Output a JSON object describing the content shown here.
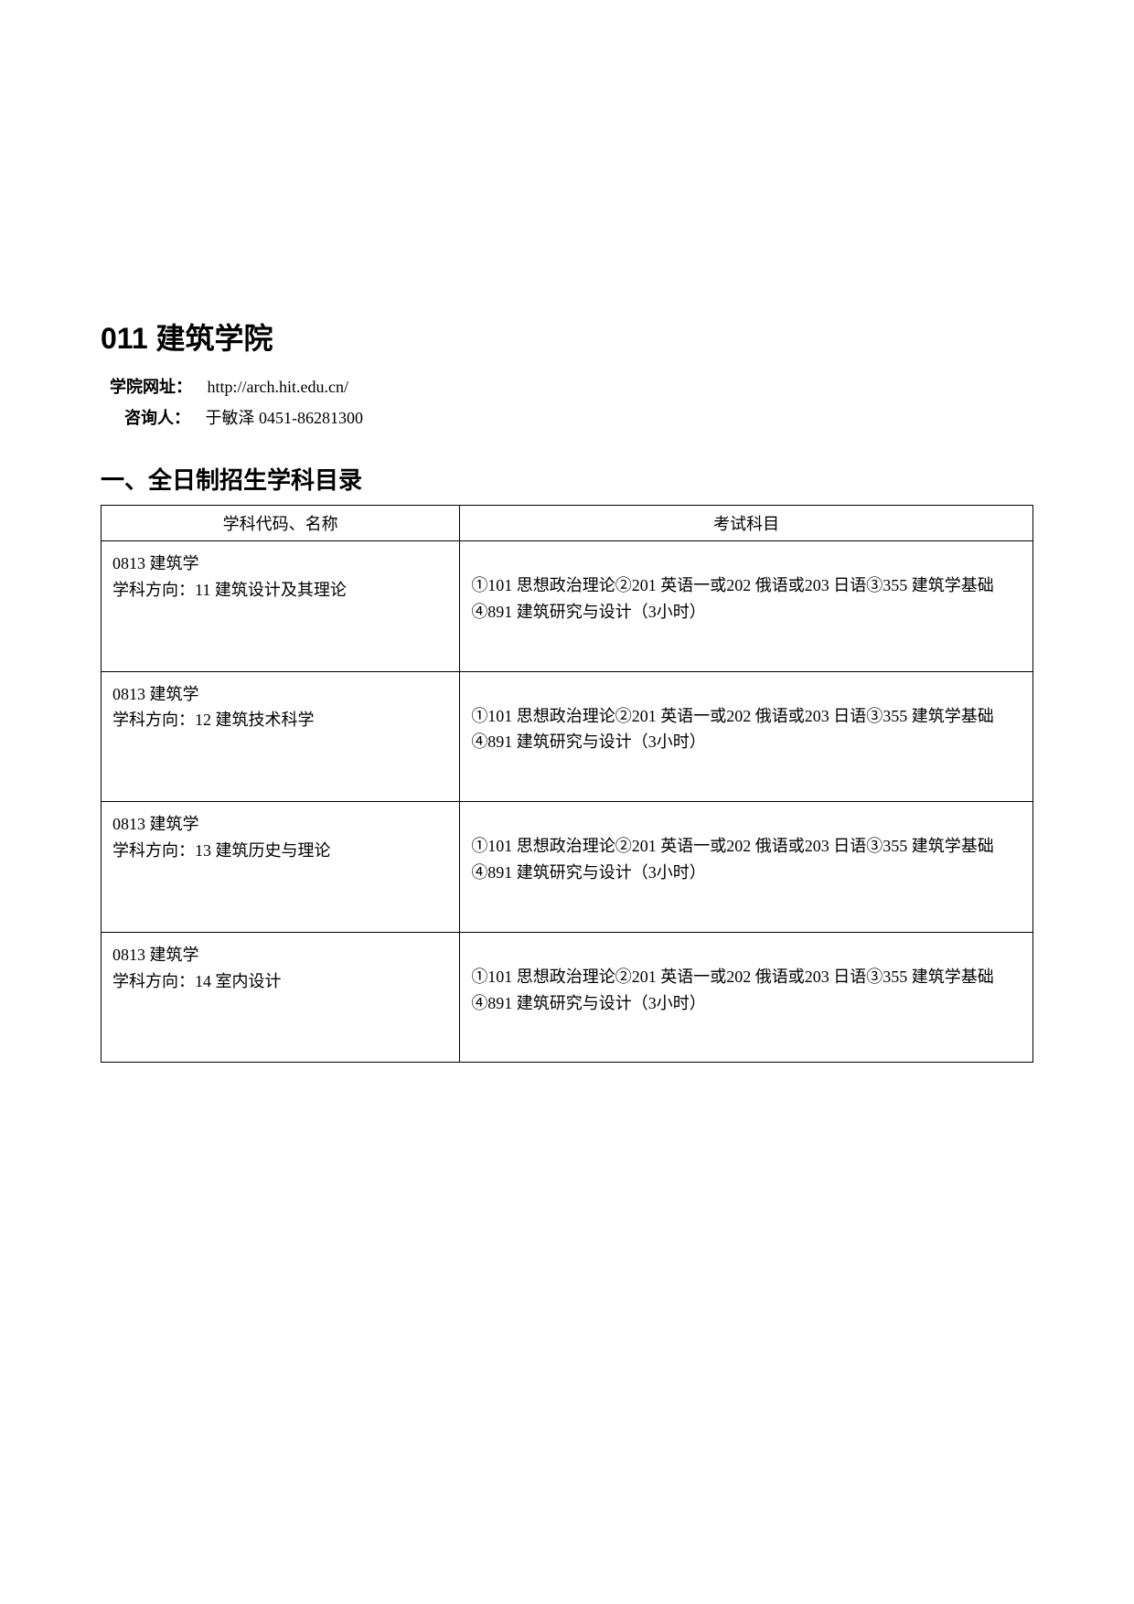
{
  "heading": "011 建筑学院",
  "info": {
    "website_label": "学院网址：",
    "website_value": "http://arch.hit.edu.cn/",
    "contact_label": "咨询人：",
    "contact_value": "于敏泽 0451-86281300"
  },
  "section_heading": "一、全日制招生学科目录",
  "table": {
    "columns": [
      "学科代码、名称",
      "考试科目"
    ],
    "rows": [
      {
        "code": "0813 建筑学",
        "direction": "学科方向：11 建筑设计及其理论",
        "exam": "①101 思想政治理论②201 英语一或202 俄语或203 日语③355 建筑学基础④891 建筑研究与设计（3小时）"
      },
      {
        "code": "0813 建筑学",
        "direction": "学科方向：12 建筑技术科学",
        "exam": "①101 思想政治理论②201 英语一或202 俄语或203 日语③355 建筑学基础④891 建筑研究与设计（3小时）"
      },
      {
        "code": "0813 建筑学",
        "direction": "学科方向：13 建筑历史与理论",
        "exam": "①101 思想政治理论②201 英语一或202 俄语或203 日语③355 建筑学基础④891 建筑研究与设计（3小时）"
      },
      {
        "code": "0813 建筑学",
        "direction": "学科方向：14 室内设计",
        "exam": "①101 思想政治理论②201 英语一或202 俄语或203 日语③355 建筑学基础④891 建筑研究与设计（3小时）"
      }
    ]
  }
}
